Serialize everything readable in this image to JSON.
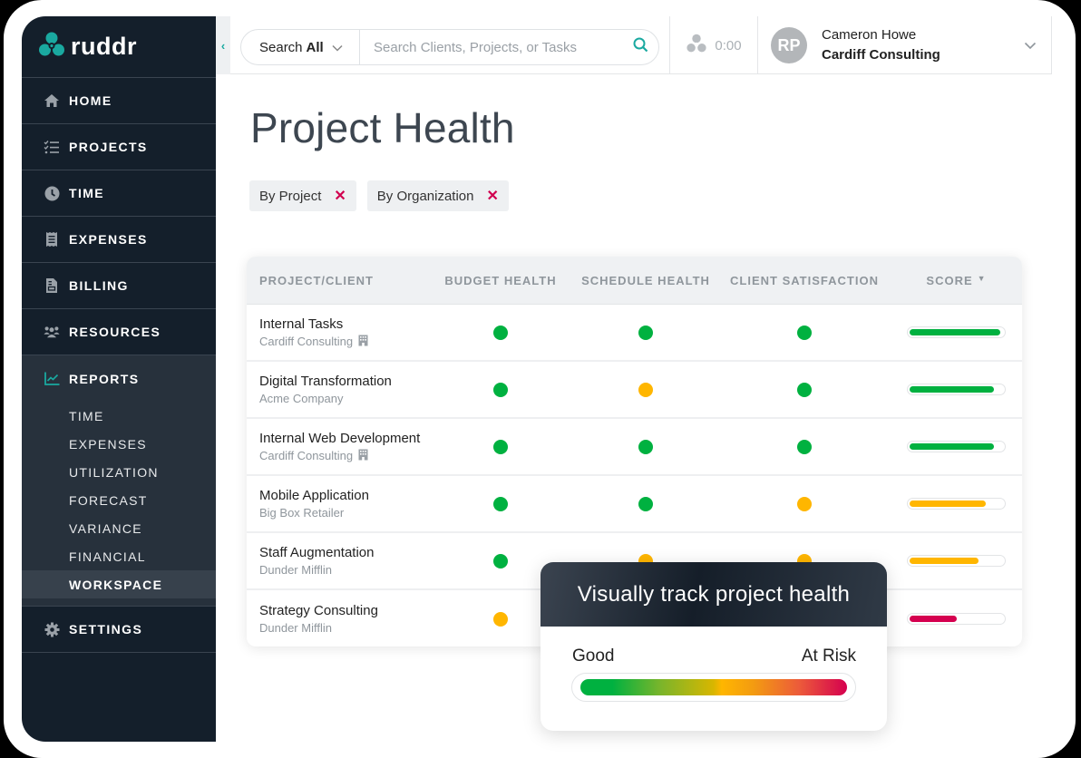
{
  "app": {
    "name": "ruddr"
  },
  "colors": {
    "brand_teal": "#1aa9a0",
    "sidebar_bg": "#141f2b",
    "good": "#00b140",
    "warning": "#ffb600",
    "risk": "#d5004f"
  },
  "sidebar": {
    "collapse_icon": "chevron-left-icon",
    "items": [
      {
        "label": "HOME",
        "icon": "home-icon"
      },
      {
        "label": "PROJECTS",
        "icon": "checklist-icon"
      },
      {
        "label": "TIME",
        "icon": "clock-icon"
      },
      {
        "label": "EXPENSES",
        "icon": "receipt-icon"
      },
      {
        "label": "BILLING",
        "icon": "invoice-icon"
      },
      {
        "label": "RESOURCES",
        "icon": "people-icon"
      }
    ],
    "reports": {
      "label": "REPORTS",
      "icon": "chart-line-icon",
      "sub_items": [
        "TIME",
        "EXPENSES",
        "UTILIZATION",
        "FORECAST",
        "VARIANCE",
        "FINANCIAL",
        "WORKSPACE"
      ],
      "active": "WORKSPACE"
    },
    "settings": {
      "label": "SETTINGS",
      "icon": "gear-icon"
    }
  },
  "topbar": {
    "search_scope_prefix": "Search",
    "search_scope_value": "All",
    "search_placeholder": "Search Clients, Projects, or Tasks",
    "search_value": "",
    "timer": "0:00",
    "user": {
      "initials": "RP",
      "name": "Cameron Howe",
      "organization": "Cardiff Consulting"
    }
  },
  "page": {
    "title": "Project Health",
    "filters": [
      {
        "label": "By Project"
      },
      {
        "label": "By Organization"
      }
    ]
  },
  "table": {
    "columns": [
      "PROJECT/CLIENT",
      "BUDGET HEALTH",
      "SCHEDULE HEALTH",
      "CLIENT SATISFACTION",
      "SCORE"
    ],
    "sort_column": "SCORE",
    "rows": [
      {
        "project": "Internal Tasks",
        "client": "Cardiff Consulting",
        "internal": true,
        "budget": "good",
        "schedule": "good",
        "satisfaction": "good",
        "score_pct": 97,
        "score_color": "good"
      },
      {
        "project": "Digital Transformation",
        "client": "Acme Company",
        "internal": false,
        "budget": "good",
        "schedule": "warning",
        "satisfaction": "good",
        "score_pct": 90,
        "score_color": "good"
      },
      {
        "project": "Internal Web Development",
        "client": "Cardiff Consulting",
        "internal": true,
        "budget": "good",
        "schedule": "good",
        "satisfaction": "good",
        "score_pct": 90,
        "score_color": "good"
      },
      {
        "project": "Mobile Application",
        "client": "Big Box Retailer",
        "internal": false,
        "budget": "good",
        "schedule": "good",
        "satisfaction": "warning",
        "score_pct": 82,
        "score_color": "warning"
      },
      {
        "project": "Staff Augmentation",
        "client": "Dunder Mifflin",
        "internal": false,
        "budget": "good",
        "schedule": "warning",
        "satisfaction": "warning",
        "score_pct": 74,
        "score_color": "warning"
      },
      {
        "project": "Strategy Consulting",
        "client": "Dunder Mifflin",
        "internal": false,
        "budget": "warning",
        "schedule": null,
        "satisfaction": null,
        "score_pct": 50,
        "score_color": "risk"
      }
    ]
  },
  "legend": {
    "title": "Visually track project health",
    "left_label": "Good",
    "right_label": "At Risk"
  }
}
